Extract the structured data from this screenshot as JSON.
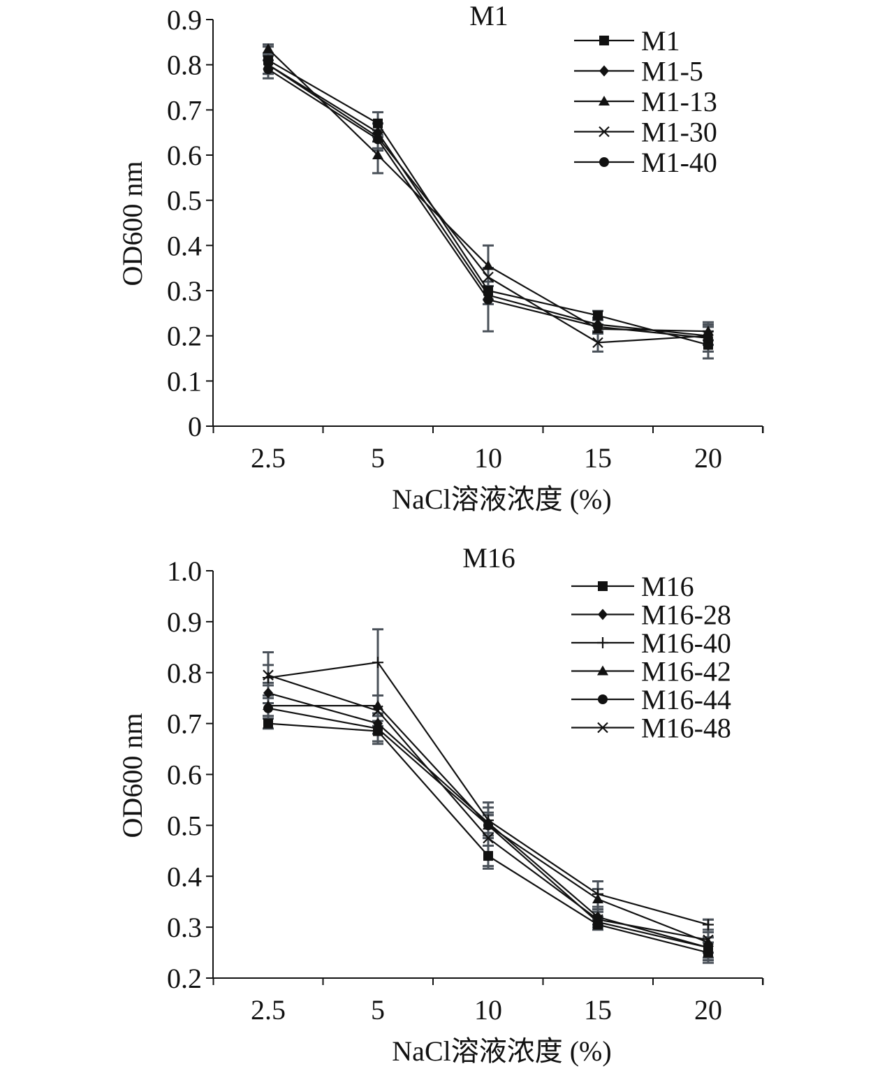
{
  "chart_data": [
    {
      "type": "line",
      "title": "M1",
      "xlabel": "NaCl溶液浓度 (%)",
      "ylabel": "OD600 nm",
      "categories": [
        "2.5",
        "5",
        "10",
        "15",
        "20"
      ],
      "ylim": [
        0,
        0.9
      ],
      "yticks": [
        "0",
        "0.1",
        "0.2",
        "0.3",
        "0.4",
        "0.5",
        "0.6",
        "0.7",
        "0.8",
        "0.9"
      ],
      "legend_position": "top-right",
      "grid": false,
      "series": [
        {
          "name": "M1",
          "marker": "square",
          "values": [
            0.81,
            0.67,
            0.3,
            0.245,
            0.18
          ],
          "errors": [
            0.03,
            0.025,
            0.02,
            0.01,
            0.03
          ]
        },
        {
          "name": "M1-5",
          "marker": "diamond",
          "values": [
            0.8,
            0.65,
            0.29,
            0.225,
            0.2
          ],
          "errors": [
            0.02,
            0.02,
            0.02,
            0.015,
            0.02
          ]
        },
        {
          "name": "M1-13",
          "marker": "triangle",
          "values": [
            0.835,
            0.6,
            0.355,
            0.215,
            0.21
          ],
          "errors": [
            0.01,
            0.04,
            0.045,
            0.01,
            0.02
          ]
        },
        {
          "name": "M1-30",
          "marker": "x",
          "values": [
            0.8,
            0.64,
            0.33,
            0.185,
            0.2
          ],
          "errors": [
            0.02,
            0.03,
            0.02,
            0.02,
            0.02
          ]
        },
        {
          "name": "M1-40",
          "marker": "circle",
          "values": [
            0.79,
            0.635,
            0.28,
            0.22,
            0.195
          ],
          "errors": [
            0.02,
            0.02,
            0.07,
            0.015,
            0.03
          ]
        }
      ]
    },
    {
      "type": "line",
      "title": "M16",
      "xlabel": "NaCl溶液浓度 (%)",
      "ylabel": "OD600 nm",
      "categories": [
        "2.5",
        "5",
        "10",
        "15",
        "20"
      ],
      "ylim": [
        0.2,
        1.0
      ],
      "yticks": [
        "0.2",
        "0.3",
        "0.4",
        "0.5",
        "0.6",
        "0.7",
        "0.8",
        "0.9",
        "1.0"
      ],
      "legend_position": "top-right",
      "grid": false,
      "series": [
        {
          "name": "M16",
          "marker": "square",
          "values": [
            0.7,
            0.685,
            0.44,
            0.305,
            0.25
          ],
          "errors": [
            0.01,
            0.02,
            0.02,
            0.01,
            0.02
          ]
        },
        {
          "name": "M16-28",
          "marker": "diamond",
          "values": [
            0.76,
            0.7,
            0.505,
            0.32,
            0.26
          ],
          "errors": [
            0.02,
            0.02,
            0.02,
            0.015,
            0.02
          ]
        },
        {
          "name": "M16-40",
          "marker": "plus",
          "values": [
            0.79,
            0.82,
            0.51,
            0.365,
            0.305
          ],
          "errors": [
            0.05,
            0.065,
            0.035,
            0.025,
            0.01
          ]
        },
        {
          "name": "M16-42",
          "marker": "triangle",
          "values": [
            0.735,
            0.735,
            0.5,
            0.355,
            0.27
          ],
          "errors": [
            0.02,
            0.02,
            0.02,
            0.02,
            0.02
          ]
        },
        {
          "name": "M16-44",
          "marker": "circle",
          "values": [
            0.73,
            0.69,
            0.5,
            0.31,
            0.26
          ],
          "errors": [
            0.02,
            0.03,
            0.02,
            0.01,
            0.02
          ]
        },
        {
          "name": "M16-48",
          "marker": "x",
          "values": [
            0.795,
            0.725,
            0.475,
            0.315,
            0.275
          ],
          "errors": [
            0.02,
            0.03,
            0.06,
            0.015,
            0.04
          ]
        }
      ]
    }
  ]
}
